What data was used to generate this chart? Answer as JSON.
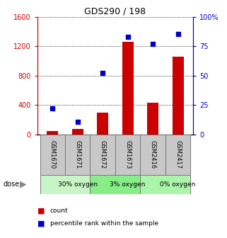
{
  "title": "GDS290 / 198",
  "categories": [
    "GSM1670",
    "GSM1671",
    "GSM1672",
    "GSM1673",
    "GSM2416",
    "GSM2417"
  ],
  "bar_values": [
    50,
    80,
    300,
    1260,
    430,
    1060
  ],
  "scatter_values": [
    22,
    11,
    52,
    83,
    77,
    85
  ],
  "ylim_left": [
    0,
    1600
  ],
  "ylim_right": [
    0,
    100
  ],
  "left_ticks": [
    0,
    400,
    800,
    1200,
    1600
  ],
  "right_ticks": [
    0,
    25,
    50,
    75,
    100
  ],
  "left_tick_labels": [
    "0",
    "400",
    "800",
    "1200",
    "1600"
  ],
  "right_tick_labels": [
    "0",
    "25",
    "50",
    "75",
    "100%"
  ],
  "bar_color": "#cc0000",
  "scatter_color": "#0000cc",
  "dose_groups": [
    {
      "label": "30% oxygen",
      "span": [
        0,
        2
      ],
      "color": "#c8f5c8"
    },
    {
      "label": "3% oxygen",
      "span": [
        2,
        4
      ],
      "color": "#88ee88"
    },
    {
      "label": "0% oxygen",
      "span": [
        4,
        6
      ],
      "color": "#aaf5aa"
    }
  ],
  "dose_label": "dose",
  "legend_count_label": "count",
  "legend_percentile_label": "percentile rank within the sample",
  "left_axis_color": "#cc0000",
  "right_axis_color": "#0000cc",
  "sample_box_color": "#c8c8c8",
  "grid_linestyle": "dotted",
  "grid_color": "#000000"
}
